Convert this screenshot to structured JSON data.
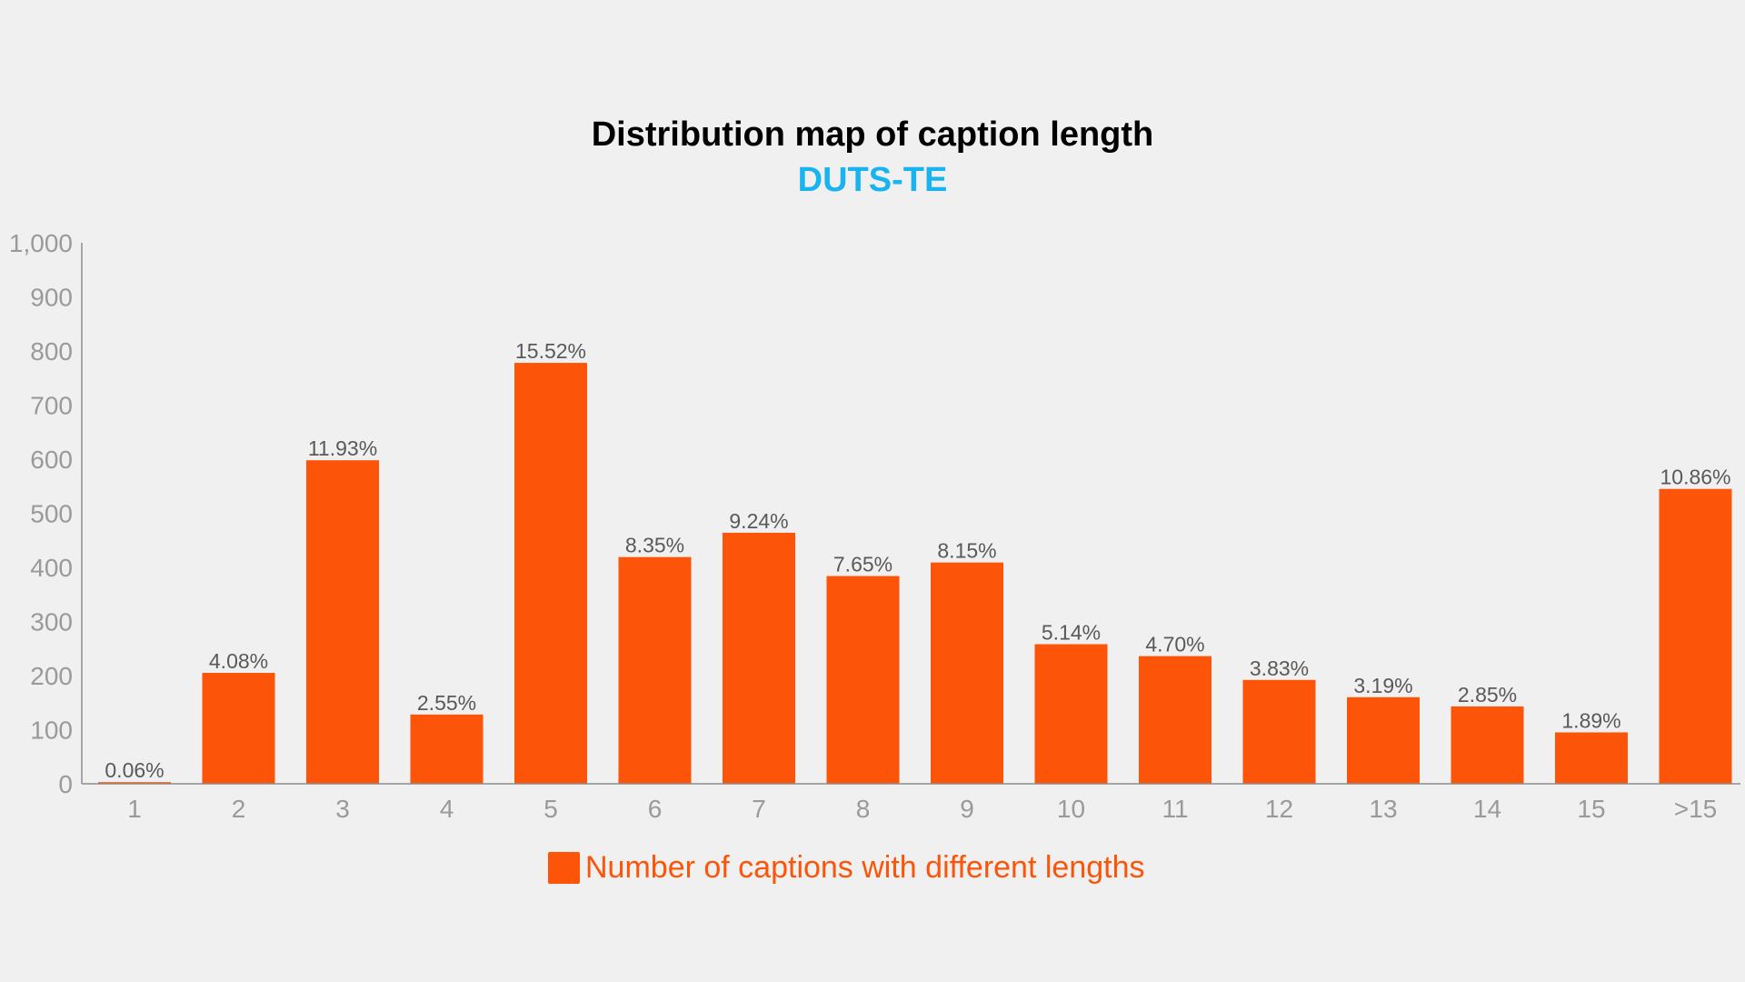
{
  "chart_data": {
    "type": "bar",
    "title": "Distribution map of caption length",
    "subtitle": "DUTS-TE",
    "categories": [
      "1",
      "2",
      "3",
      "4",
      "5",
      "6",
      "7",
      "8",
      "9",
      "10",
      "11",
      "12",
      "13",
      "14",
      "15",
      ">15"
    ],
    "series": [
      {
        "name": "Number of captions with different lengths",
        "values": [
          3,
          205,
          598,
          128,
          778,
          419,
          464,
          384,
          409,
          258,
          236,
          192,
          160,
          143,
          95,
          545
        ],
        "labels": [
          "0.06%",
          "4.08%",
          "11.93%",
          "2.55%",
          "15.52%",
          "8.35%",
          "9.24%",
          "7.65%",
          "8.15%",
          "5.14%",
          "4.70%",
          "3.83%",
          "3.19%",
          "2.85%",
          "1.89%",
          "10.86%"
        ]
      }
    ],
    "ylim": [
      0,
      1000
    ],
    "yticks": [
      "0",
      "100",
      "200",
      "300",
      "400",
      "500",
      "600",
      "700",
      "800",
      "900",
      "1,000"
    ],
    "xlabel": "",
    "ylabel": "",
    "grid": false,
    "legend_position": "bottom"
  },
  "colors": {
    "bar": "#fc5408",
    "title": "#000000",
    "subtitle": "#19b4f0",
    "tick": "#9a9a9a",
    "data_label": "#595959",
    "axis": "#8c8c8c",
    "legend_text": "#fc5408"
  }
}
